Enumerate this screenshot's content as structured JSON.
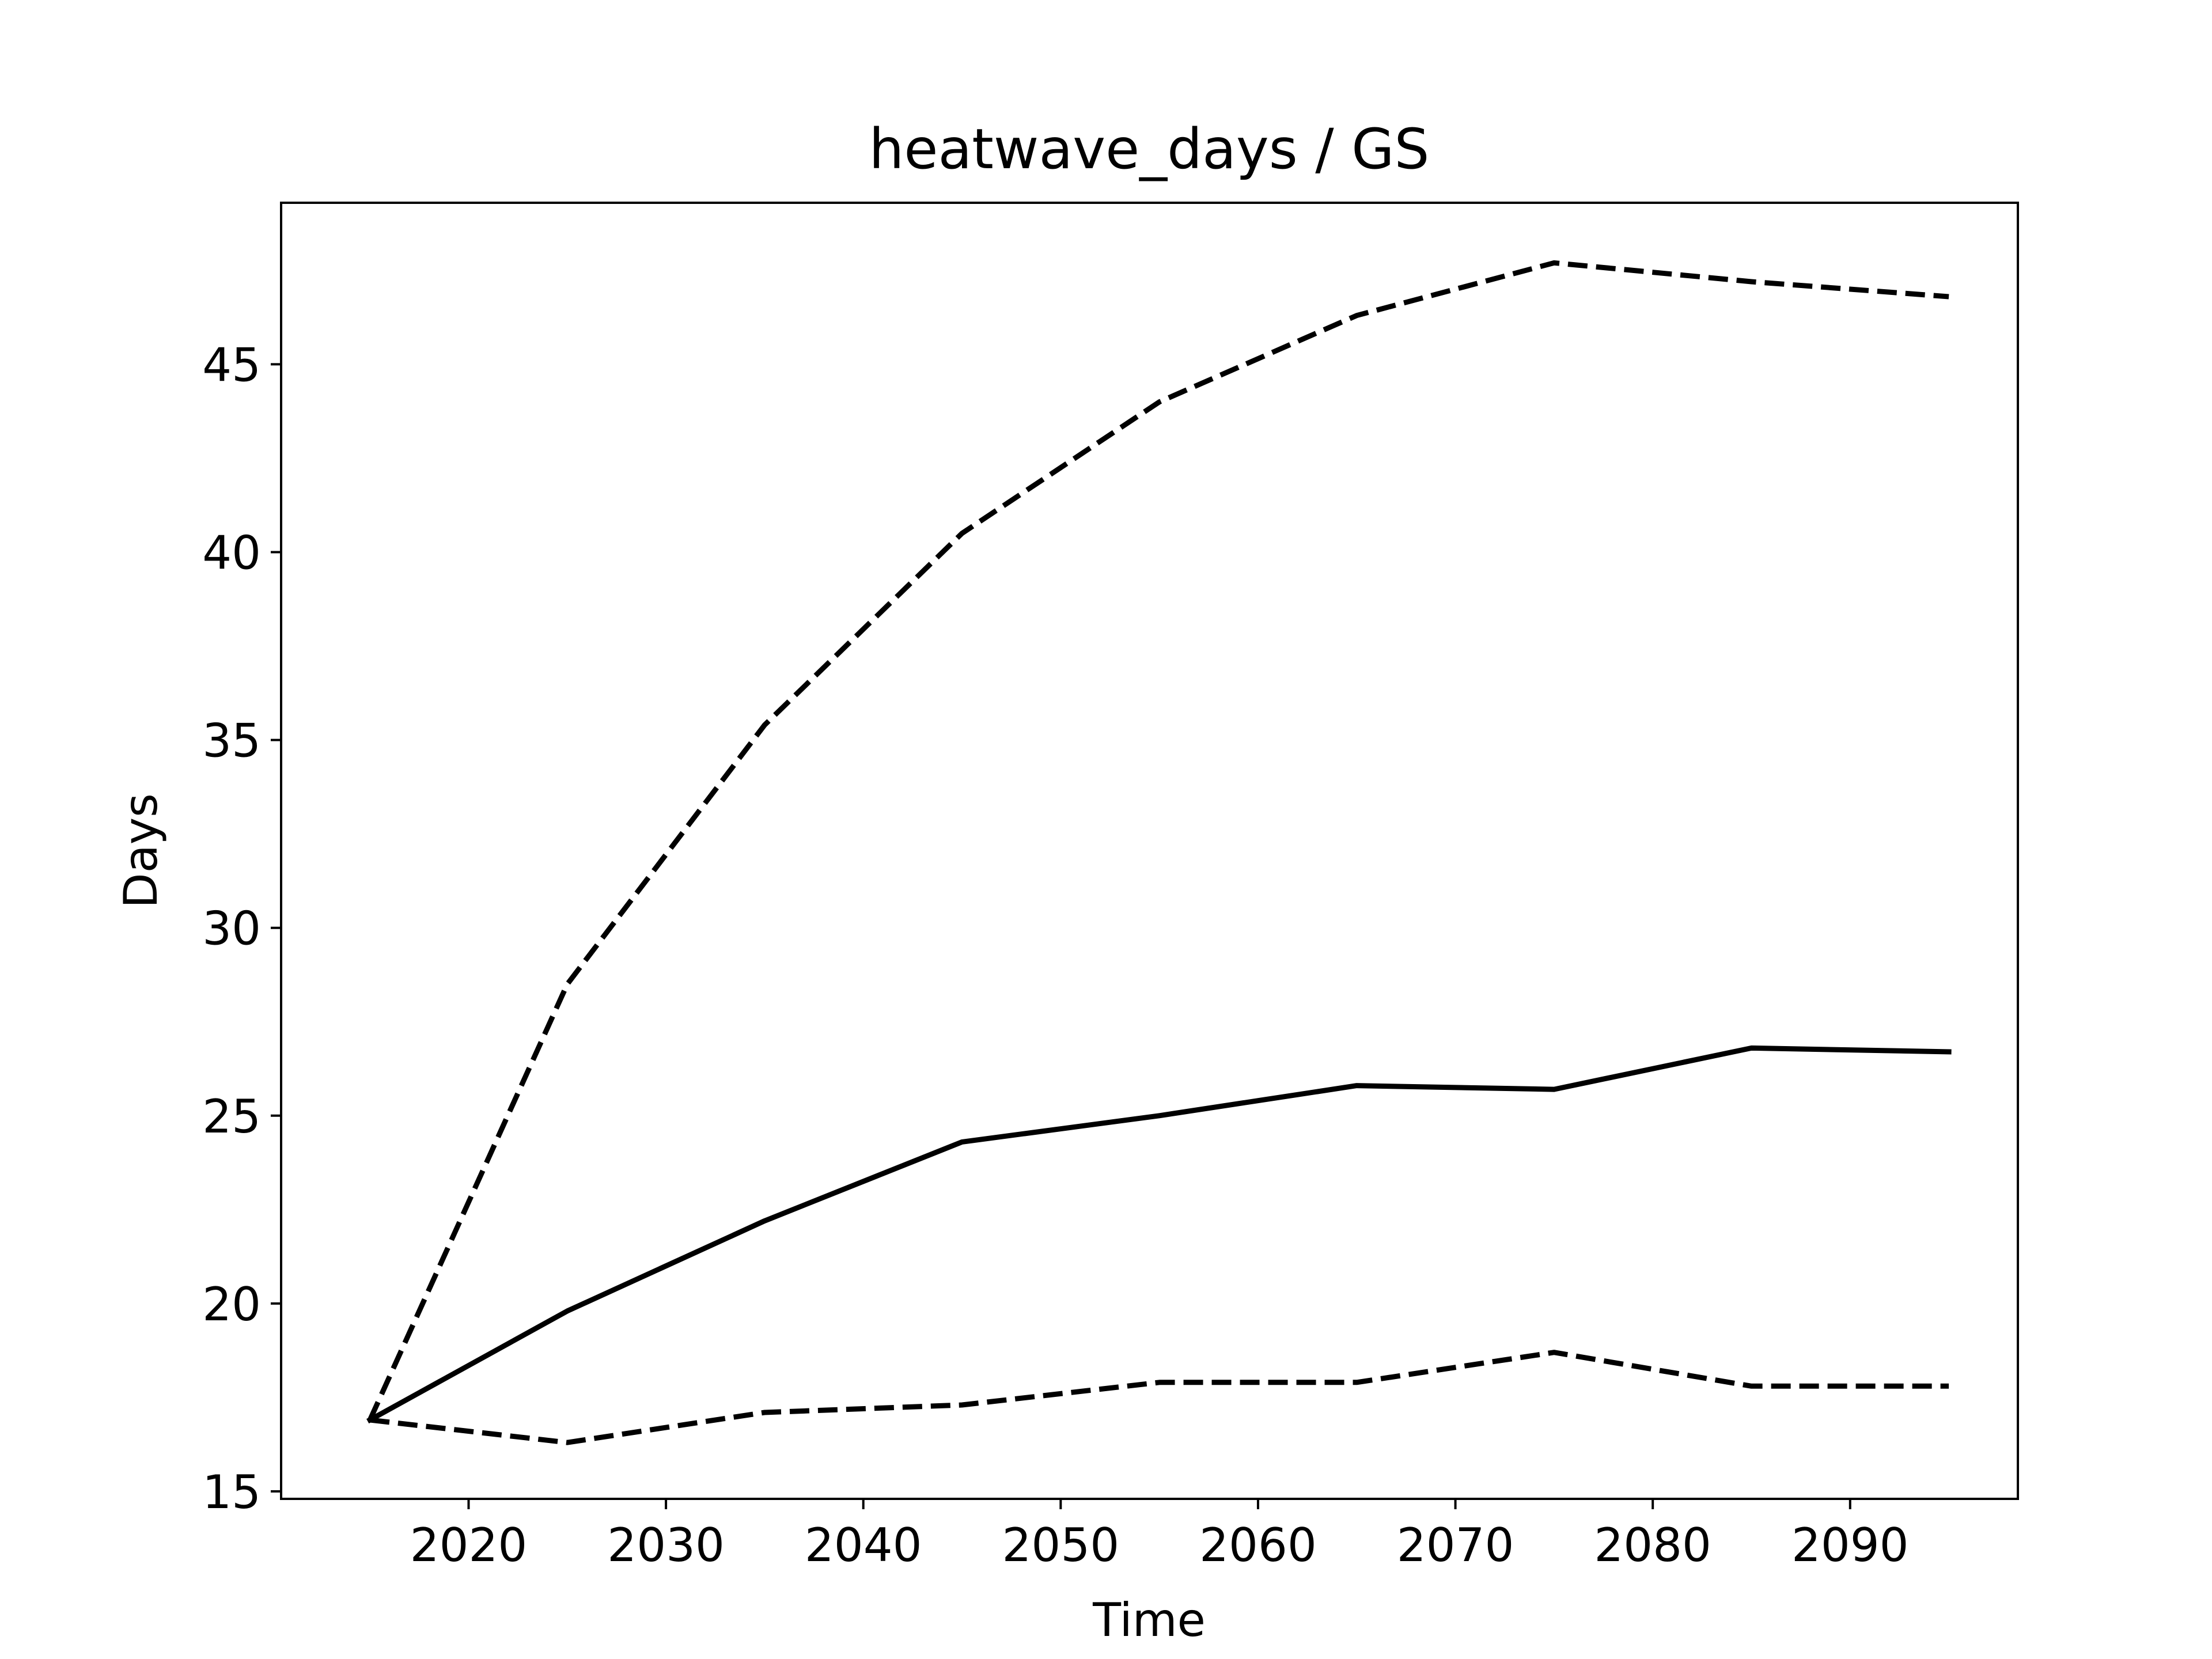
{
  "chart_data": {
    "type": "line",
    "title": "heatwave_days / GS",
    "xlabel": "Time",
    "ylabel": "Days",
    "x": [
      2015,
      2025,
      2035,
      2045,
      2055,
      2065,
      2075,
      2085,
      2095
    ],
    "xlim": [
      2010.5,
      2098.5
    ],
    "ylim": [
      14.8,
      49.3
    ],
    "xticks": [
      2020,
      2030,
      2040,
      2050,
      2060,
      2070,
      2080,
      2090
    ],
    "yticks": [
      15,
      20,
      25,
      30,
      35,
      40,
      45
    ],
    "grid": false,
    "series": [
      {
        "style": "dashed",
        "color": "#000000",
        "values": [
          16.9,
          28.5,
          35.4,
          40.5,
          44.0,
          46.3,
          47.7,
          47.2,
          46.8
        ]
      },
      {
        "style": "solid",
        "color": "#000000",
        "values": [
          16.9,
          19.8,
          22.2,
          24.3,
          25.0,
          25.8,
          25.7,
          26.8,
          26.7
        ]
      },
      {
        "style": "dashed",
        "color": "#000000",
        "values": [
          16.9,
          16.3,
          17.1,
          17.3,
          17.9,
          17.9,
          18.7,
          17.8,
          17.8
        ]
      }
    ]
  }
}
